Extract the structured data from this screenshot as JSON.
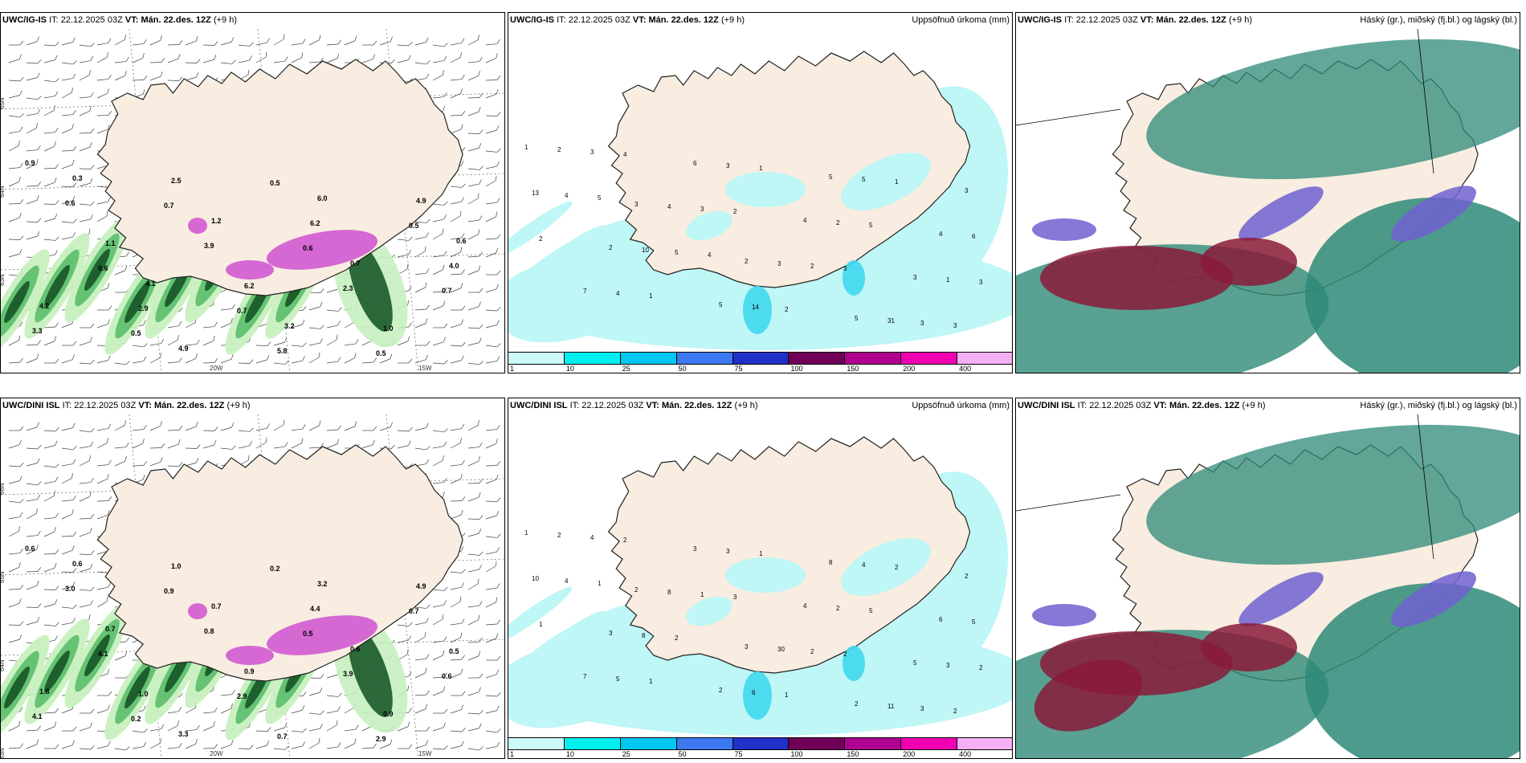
{
  "rows": [
    {
      "model": "UWC/IG-IS",
      "it_label": "IT:",
      "it": "22.12.2025 03Z",
      "vt_label": "VT:",
      "vt": "Mán. 22.des. 12Z",
      "lead": "(+9 h)",
      "precip_title": "Uppsöfnuð úrkoma (mm)",
      "cloud_title": "Háský (gr.), miðský (fj.bl.) og lágský (bl.)",
      "precip_labels": [
        "1",
        "3",
        "2",
        "5",
        "3",
        "2",
        "5",
        "5",
        "4",
        "7",
        "6",
        "4",
        "3",
        "2",
        "4",
        "3",
        "31",
        "13",
        "10",
        "14",
        "5",
        "6",
        "4",
        "3",
        "2",
        "1",
        "3",
        "3",
        "2",
        "3",
        "4",
        "5",
        "2",
        "1",
        "2",
        "1",
        "1",
        "5",
        "3",
        "4",
        "2",
        "3",
        "3",
        "5",
        "4"
      ],
      "wind_labels": [
        "0.9",
        "0.7",
        "0.6",
        "0.7",
        "0.5",
        "0.5",
        "0.5",
        "0.6",
        "0.7",
        "0.5",
        "0.6",
        "3.9",
        "2.3",
        "3.3",
        "2.5",
        "6.2",
        "4.0",
        "2.9",
        "5.8",
        "4.9",
        "1.1",
        "6.2",
        "1.0",
        "0.3",
        "1.2",
        "0.7",
        "4.2",
        "4.9",
        "6.0",
        "0.6",
        "4.1",
        "3.2"
      ],
      "lon_labels": [
        "20W",
        "15W"
      ],
      "lat_labels": [
        "65N",
        "64N",
        "63N"
      ]
    },
    {
      "model": "UWC/DINI ISL",
      "it_label": "IT:",
      "it": "22.12.2025 03Z",
      "vt_label": "VT:",
      "vt": "Mán. 22.des. 12Z",
      "lead": "(+9 h)",
      "precip_title": "Uppsöfnuð úrkoma (mm)",
      "cloud_title": "Háský (gr.), miðský (fj.bl.) og lágský (bl.)",
      "precip_labels": [
        "1",
        "2",
        "3",
        "2",
        "2",
        "3",
        "2",
        "8",
        "6",
        "7",
        "3",
        "4",
        "5",
        "2",
        "8",
        "30",
        "11",
        "10",
        "8",
        "6",
        "4",
        "5",
        "5",
        "3",
        "2",
        "3",
        "4",
        "1",
        "2",
        "3",
        "4",
        "2",
        "1",
        "2",
        "1",
        "1",
        "1",
        "5",
        "2",
        "2",
        "3",
        "2",
        "2",
        "1"
      ],
      "wind_labels": [
        "0.6",
        "0.9",
        "0.5",
        "0.6",
        "0.2",
        "0.2",
        "0.7",
        "4.1",
        "2.9",
        "2.9",
        "3.0",
        "0.8",
        "3.9",
        "4.1",
        "1.0",
        "4.4",
        "0.5",
        "1.0",
        "0.7",
        "4.9",
        "0.7",
        "0.9",
        "0.9",
        "0.6",
        "0.7",
        "0.6",
        "1.8",
        "3.3",
        "3.2"
      ],
      "lon_labels": [
        "20W",
        "15W"
      ],
      "lat_labels": [
        "66N",
        "65N",
        "64N",
        "63N"
      ]
    }
  ],
  "precip_colorbar": {
    "ticks": [
      "1",
      "10",
      "25",
      "50",
      "75",
      "100",
      "150",
      "200",
      "400"
    ],
    "colors": [
      "#ccfafa",
      "#00f0f0",
      "#00c8f0",
      "#3c78f0",
      "#2030c8",
      "#700058",
      "#b00090",
      "#f000b0",
      "#f5b0f5"
    ]
  },
  "colors": {
    "land": "#f8ede0",
    "precip_light": "#bff6f6",
    "precip_mid": "#40d8f0",
    "wind_green_light": "#c8f0c0",
    "wind_green_mid": "#60c070",
    "wind_green_dark": "#1a5a2a",
    "wind_purple": "#d050d0",
    "cloud_high": "#2e8a78",
    "cloud_mid": "#7060d0",
    "cloud_low": "#8a1a3a"
  }
}
